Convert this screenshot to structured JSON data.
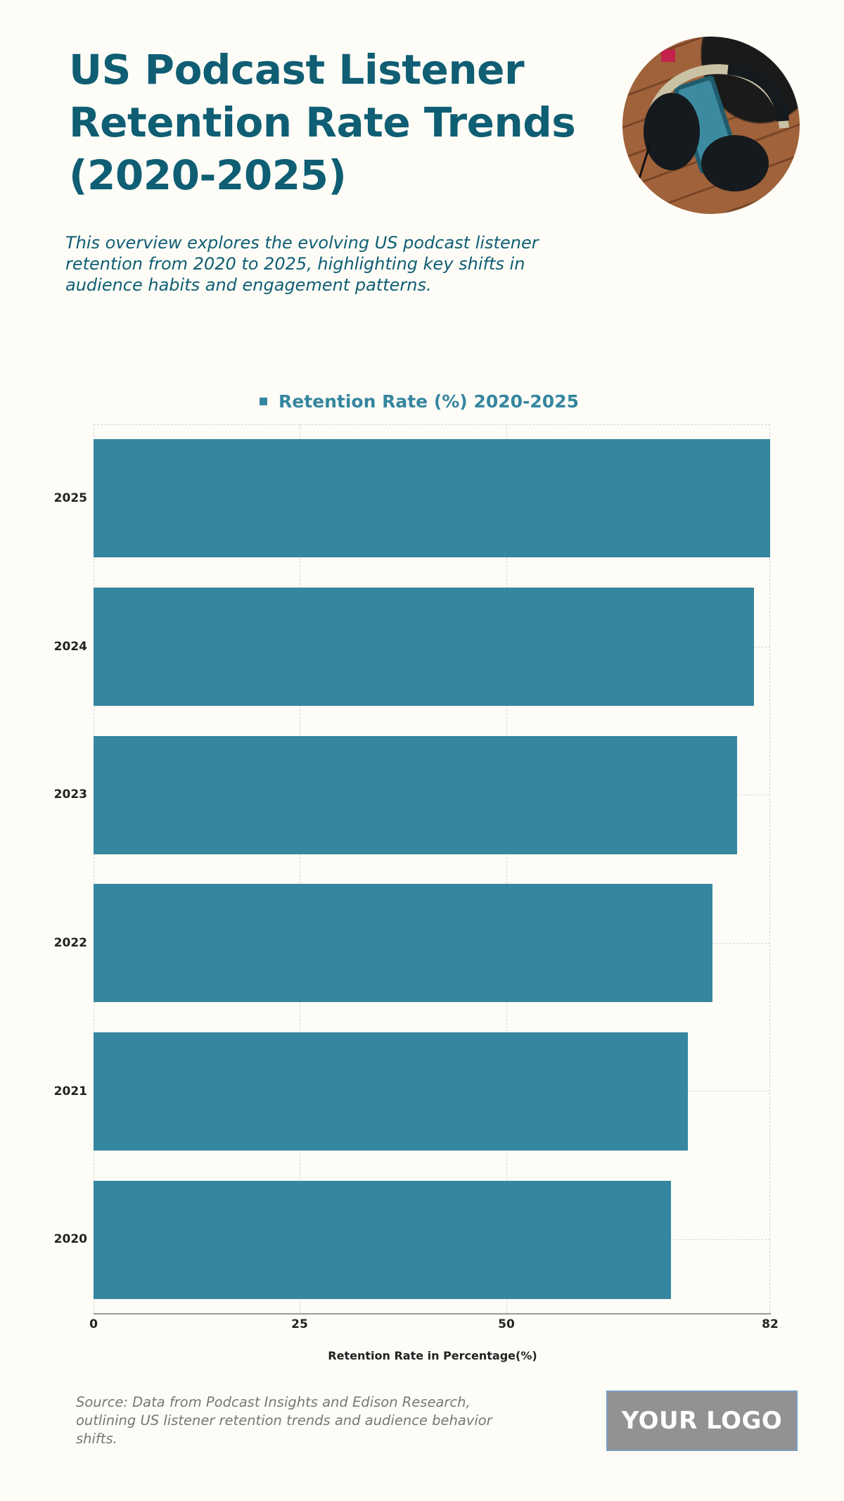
{
  "header": {
    "title": "US Podcast Listener Retention Rate Trends (2020-2025)",
    "subtitle": "This overview explores the evolving US podcast listener retention from 2020 to 2025, highlighting key shifts in audience habits and engagement patterns.",
    "image": "headphones-photo"
  },
  "legend": {
    "label": "Retention Rate (%) 2020-2025",
    "color": "#35869f"
  },
  "axis": {
    "x_label": "Retention Rate in Percentage(%)",
    "x_ticks": [
      "0",
      "25",
      "50",
      "82"
    ],
    "y_labels": [
      "2025",
      "2024",
      "2023",
      "2022",
      "2021",
      "2020"
    ]
  },
  "footer": {
    "source": "Source: Data from Podcast Insights and Edison Research, outlining US listener retention trends and audience behavior shifts.",
    "logo": "YOUR LOGO"
  },
  "colors": {
    "title": "#0f5e73",
    "bar": "#35869f",
    "background": "#fdfcf7",
    "logo_bg": "#929292"
  },
  "chart_data": {
    "type": "bar",
    "orientation": "horizontal",
    "title": "US Podcast Listener Retention Rate Trends (2020-2025)",
    "categories": [
      "2025",
      "2024",
      "2023",
      "2022",
      "2021",
      "2020"
    ],
    "series": [
      {
        "name": "Retention Rate (%) 2020-2025",
        "values": [
          82,
          80,
          78,
          75,
          72,
          70
        ]
      }
    ],
    "xlabel": "Retention Rate in Percentage(%)",
    "ylabel": "",
    "xlim": [
      0,
      82
    ],
    "x_ticks": [
      0,
      25,
      50,
      82
    ],
    "grid": true,
    "legend_position": "top"
  }
}
